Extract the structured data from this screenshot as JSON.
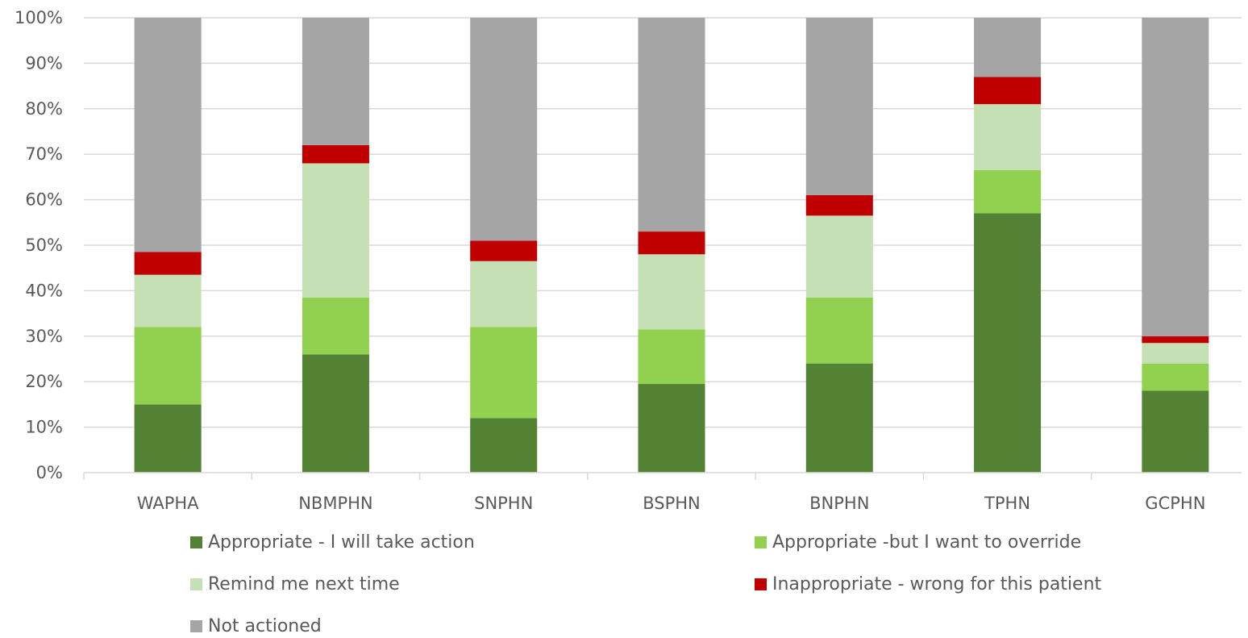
{
  "chart_data": {
    "type": "bar",
    "stacked": true,
    "percent_stacked": true,
    "categories": [
      "WAPHA",
      "NBMPHN",
      "SNPHN",
      "BSPHN",
      "BNPHN",
      "TPHN",
      "GCPHN"
    ],
    "series": [
      {
        "name": "Appropriate - I will take action",
        "color": "#548235",
        "values": [
          15,
          26,
          12,
          19.5,
          24,
          57,
          18
        ]
      },
      {
        "name": "Appropriate -but I want to override",
        "color": "#92D050",
        "values": [
          17,
          12.5,
          20,
          12,
          14.5,
          9.5,
          6
        ]
      },
      {
        "name": "Remind me next time",
        "color": "#C5E0B4",
        "values": [
          11.5,
          29.5,
          14.5,
          16.5,
          18,
          14.5,
          4.5
        ]
      },
      {
        "name": "Inappropriate - wrong for this patient",
        "color": "#C00000",
        "values": [
          5,
          4,
          4.5,
          5,
          4.5,
          6,
          1.5
        ]
      },
      {
        "name": "Not actioned",
        "color": "#A5A5A5",
        "values": [
          51.5,
          28,
          49,
          47,
          39,
          13,
          70
        ]
      }
    ],
    "y_ticks": [
      "0%",
      "10%",
      "20%",
      "30%",
      "40%",
      "50%",
      "60%",
      "70%",
      "80%",
      "90%",
      "100%"
    ],
    "ylim": [
      0,
      100
    ],
    "grid": true,
    "legend_position": "bottom"
  }
}
